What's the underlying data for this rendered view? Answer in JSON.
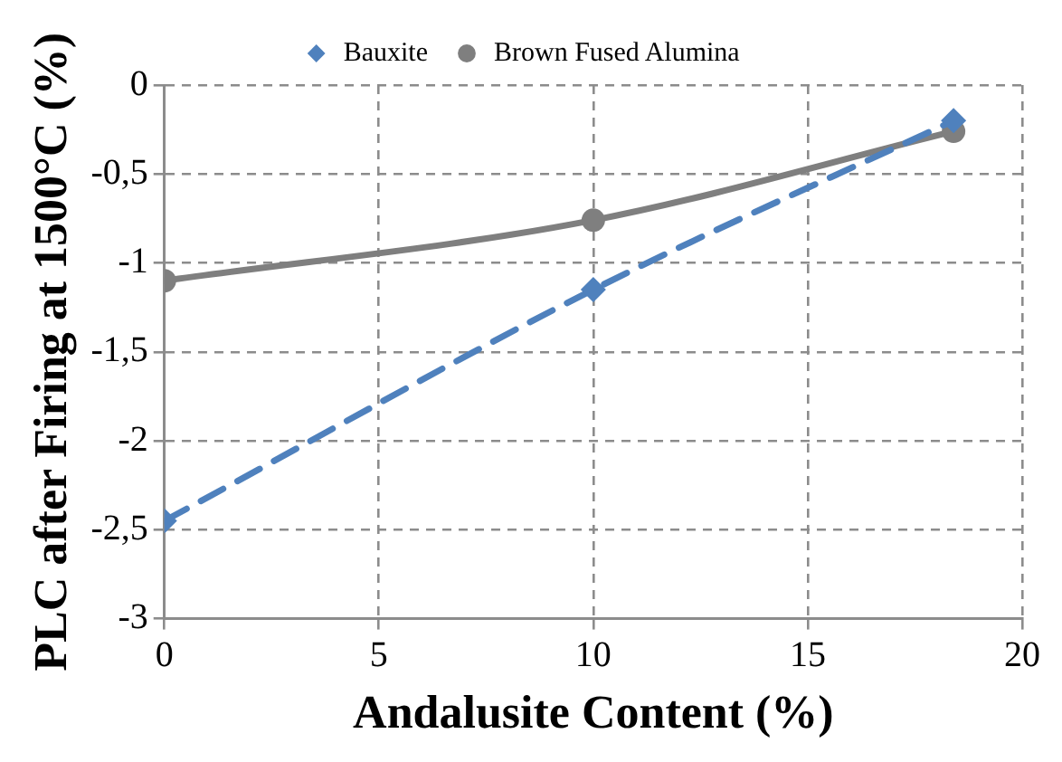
{
  "chart_data": {
    "type": "line",
    "xlabel": "Andalusite Content (%)",
    "ylabel": "PLC after Firing at 1500°C (%)",
    "xlim": [
      0,
      20
    ],
    "xticks": [
      0,
      5,
      10,
      15,
      20
    ],
    "ylim": [
      -3,
      0
    ],
    "yticks": [
      {
        "value": -3,
        "label": "-3"
      },
      {
        "value": -2.5,
        "label": "-2,5"
      },
      {
        "value": -2,
        "label": "-2"
      },
      {
        "value": -1.5,
        "label": "-1,5"
      },
      {
        "value": -1,
        "label": "-1"
      },
      {
        "value": -0.5,
        "label": "-0,5"
      },
      {
        "value": 0,
        "label": "0"
      }
    ],
    "grid": true,
    "legend": "top",
    "series": [
      {
        "name": "Bauxite",
        "color": "#4f81bd",
        "x": [
          0,
          10,
          18.4
        ],
        "values": [
          -2.45,
          -1.15,
          -0.2
        ],
        "marker": "diamond",
        "line_style": "dashed"
      },
      {
        "name": "Brown Fused Alumina",
        "color": "#7f7f7f",
        "x": [
          0,
          10,
          18.4
        ],
        "values": [
          -1.1,
          -0.76,
          -0.26
        ],
        "marker": "circle",
        "line_style": "solid"
      }
    ]
  }
}
